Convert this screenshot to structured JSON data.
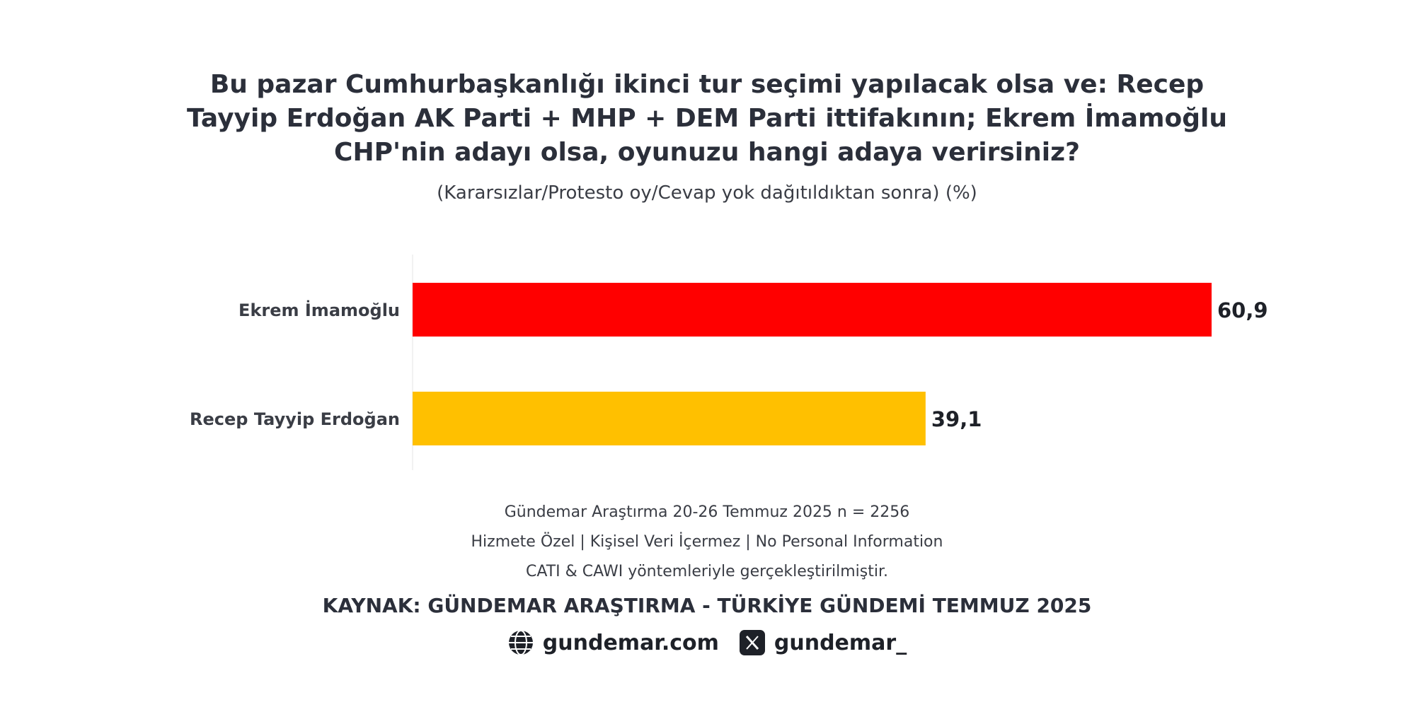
{
  "chart_data": {
    "type": "bar",
    "orientation": "horizontal",
    "title_lines": [
      "Bu pazar Cumhurbaşkanlığı ikinci tur seçimi yapılacak olsa ve: Recep",
      "Tayyip Erdoğan AK Parti + MHP + DEM Parti ittifakının; Ekrem İmamoğlu",
      "CHP'nin adayı olsa, oyunuzu hangi adaya verirsiniz?"
    ],
    "subtitle": "(Kararsızlar/Protesto oy/Cevap yok dağıtıldıktan sonra) (%)",
    "categories": [
      "Ekrem İmamoğlu",
      "Recep Tayyip Erdoğan"
    ],
    "values": [
      60.9,
      39.1
    ],
    "value_labels": [
      "60,9",
      "39,1"
    ],
    "colors": [
      "#ff0000",
      "#ffc000"
    ],
    "xlim": [
      0,
      60.9
    ],
    "grid": false,
    "legend": "none"
  },
  "footer": {
    "survey": "Gündemar Araştırma 20-26 Temmuz 2025 n = 2256",
    "notice": "Hizmete Özel | Kişisel Veri İçermez | No Personal Information",
    "method": "CATI & CAWI yöntemleriyle gerçekleştirilmiştir.",
    "source": "KAYNAK: GÜNDEMAR ARAŞTIRMA - TÜRKİYE GÜNDEMİ TEMMUZ 2025",
    "website": "gundemar.com",
    "x_handle": "gundemar_"
  },
  "icons": {
    "website": "www-globe-icon",
    "x": "x-logo-icon"
  }
}
